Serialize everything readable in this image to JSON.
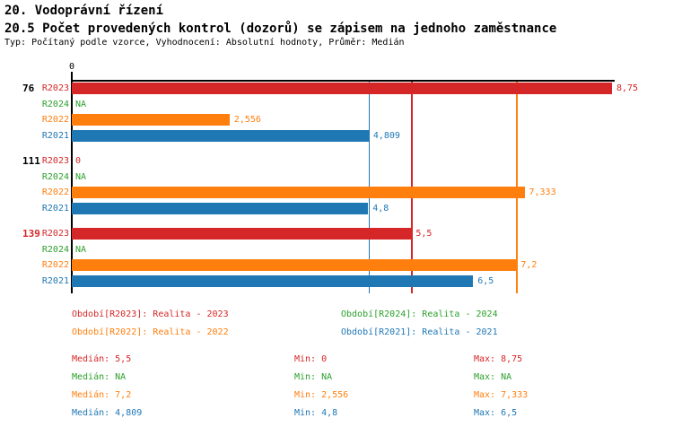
{
  "header": {
    "title": "20. Vodoprávní řízení",
    "subtitle": "20.5 Počet provedených kontrol (dozorů) se zápisem na jednoho zaměstnance",
    "meta": "Typ: Počítaný podle vzorce, Vyhodnocení: Absolutní hodnoty, Průměr: Medián"
  },
  "colors": {
    "red": "#d62728",
    "green": "#2ca02c",
    "orange": "#ff7f0e",
    "blue": "#1f77b4",
    "axis": "#000000",
    "background": "#ffffff"
  },
  "chart_data": {
    "type": "bar",
    "orientation": "horizontal",
    "xlim": [
      0,
      8.75
    ],
    "zero_tick_label": "0",
    "grid": false,
    "categories": [
      "76",
      "111",
      "139"
    ],
    "category_colors": [
      "#000000",
      "#000000",
      "#d62728"
    ],
    "series": [
      {
        "name": "R2023",
        "color": "#d62728",
        "values": [
          8.75,
          0,
          5.5
        ],
        "labels": [
          "8,75",
          "0",
          "5,5"
        ]
      },
      {
        "name": "R2024",
        "color": "#2ca02c",
        "values": [
          null,
          null,
          null
        ],
        "labels": [
          "NA",
          "NA",
          "NA"
        ]
      },
      {
        "name": "R2022",
        "color": "#ff7f0e",
        "values": [
          2.556,
          7.333,
          7.2
        ],
        "labels": [
          "2,556",
          "7,333",
          "7,2"
        ]
      },
      {
        "name": "R2021",
        "color": "#1f77b4",
        "values": [
          4.809,
          4.8,
          6.5
        ],
        "labels": [
          "4,809",
          "4,8",
          "6,5"
        ]
      }
    ],
    "median_lines": [
      {
        "series": "R2023",
        "value": 5.5,
        "color": "#d62728"
      },
      {
        "series": "R2022",
        "value": 7.2,
        "color": "#ff7f0e"
      },
      {
        "series": "R2021",
        "value": 4.809,
        "color": "#1f77b4"
      }
    ]
  },
  "legend": {
    "items": [
      {
        "label": "Období[R2023]: Realita - 2023",
        "color": "#d62728"
      },
      {
        "label": "Období[R2024]: Realita - 2024",
        "color": "#2ca02c"
      },
      {
        "label": "Období[R2022]: Realita - 2022",
        "color": "#ff7f0e"
      },
      {
        "label": "Období[R2021]: Realita - 2021",
        "color": "#1f77b4"
      }
    ]
  },
  "stats": {
    "rows": [
      {
        "color": "#d62728",
        "cells": [
          "Medián: 5,5",
          "Min: 0",
          "Max: 8,75"
        ]
      },
      {
        "color": "#2ca02c",
        "cells": [
          "Medián: NA",
          "Min: NA",
          "Max: NA"
        ]
      },
      {
        "color": "#ff7f0e",
        "cells": [
          "Medián: 7,2",
          "Min: 2,556",
          "Max: 7,333"
        ]
      },
      {
        "color": "#1f77b4",
        "cells": [
          "Medián: 4,809",
          "Min: 4,8",
          "Max: 6,5"
        ]
      }
    ]
  }
}
